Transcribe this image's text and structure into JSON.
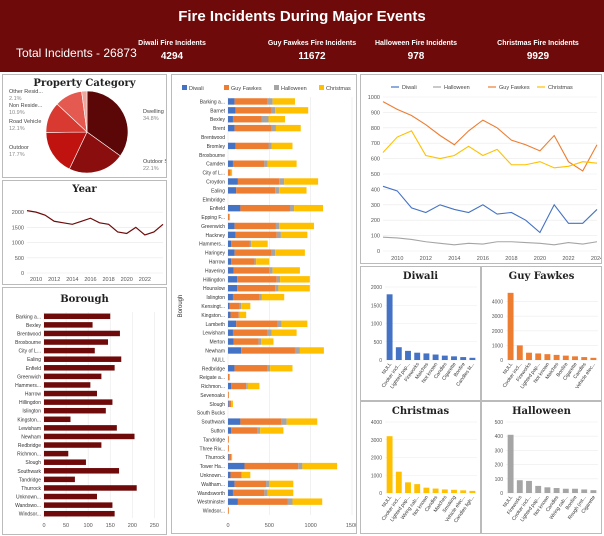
{
  "header": {
    "title": "Fire Incidents During Major Events",
    "total": "Total Incidents - 26873",
    "kpis": [
      {
        "label": "Diwali Fire Incidents",
        "value": "4294"
      },
      {
        "label": "Guy Fawkes Fire Incidents",
        "value": "11672"
      },
      {
        "label": "Halloween Fire Incidents",
        "value": "978"
      },
      {
        "label": "Christmas Fire Incidents",
        "value": "9929"
      }
    ]
  },
  "colors": {
    "diwali": "#4472c4",
    "guy": "#ed7d31",
    "halloween": "#a5a5a5",
    "christmas": "#ffc000",
    "maroon": "#6e0a0a"
  },
  "chart_data": [
    {
      "id": "property",
      "type": "pie",
      "title": "Property Category",
      "slices": [
        {
          "label": "Dwelling",
          "pct": "34.8%",
          "value": 34.8,
          "color": "#5c0707"
        },
        {
          "label": "Outdoor Str...",
          "pct": "22.1%",
          "value": 22.1,
          "color": "#8b0e0e"
        },
        {
          "label": "Outdoor",
          "pct": "17.7%",
          "value": 17.7,
          "color": "#c0120f"
        },
        {
          "label": "Road Vehicle",
          "pct": "12.1%",
          "value": 12.1,
          "color": "#d83a32"
        },
        {
          "label": "Non Reside...",
          "pct": "10.9%",
          "value": 10.9,
          "color": "#e45a50"
        },
        {
          "label": "Other Resid...",
          "pct": "2.1%",
          "value": 2.1,
          "color": "#f0a59d"
        }
      ]
    },
    {
      "id": "year",
      "type": "line",
      "title": "Year",
      "x": [
        2009,
        2010,
        2011,
        2012,
        2013,
        2014,
        2015,
        2016,
        2017,
        2018,
        2019,
        2020,
        2021,
        2022,
        2023,
        2024
      ],
      "values": [
        2050,
        2000,
        1900,
        1700,
        1650,
        1600,
        1700,
        1800,
        1650,
        1600,
        1350,
        1300,
        1500,
        1250,
        1350,
        1600
      ],
      "xticks": [
        "2010",
        "2012",
        "2014",
        "2016",
        "2018",
        "2020",
        "2022"
      ],
      "yticks": [
        "0",
        "500",
        "1000",
        "1500",
        "2000"
      ],
      "ylim": [
        0,
        2300
      ]
    },
    {
      "id": "borough_total",
      "type": "bar",
      "title": "Borough",
      "categories": [
        "Barking a...",
        "Bexley",
        "Brentwood",
        "Broxbourne",
        "City of L...",
        "Ealing",
        "Enfield",
        "Greenwich",
        "Hammers...",
        "Harrow",
        "Hillingdon",
        "Islington",
        "Kingston...",
        "Lewisham",
        "Newham",
        "Redbridge",
        "Richmon...",
        "Slough",
        "Southwark",
        "Tandridge",
        "Thurrock",
        "Unknown...",
        "Wandswo...",
        "Windsor..."
      ],
      "values": [
        150,
        110,
        172,
        145,
        115,
        175,
        160,
        130,
        105,
        120,
        155,
        140,
        60,
        165,
        205,
        130,
        55,
        95,
        170,
        70,
        210,
        120,
        155,
        160
      ],
      "xticks": [
        "0",
        "50",
        "100",
        "150",
        "200",
        "250"
      ],
      "xlim": [
        0,
        265
      ]
    },
    {
      "id": "borough_stacked",
      "type": "bar",
      "orientation": "horizontal-stacked",
      "ylabel": "Borough",
      "legend": [
        "Diwali",
        "Guy Fawkes",
        "Halloween",
        "Christmas"
      ],
      "categories": [
        "Barking a...",
        "Barnet",
        "Bexley",
        "Brent",
        "Brentwood",
        "Bromley",
        "Broxbourne",
        "Camden",
        "City of L...",
        "Croydon",
        "Ealing",
        "Elmbridge",
        "Enfield",
        "Epping F...",
        "Greenwich",
        "Hackney",
        "Hammers...",
        "Haringey",
        "Harrow",
        "Havering",
        "Hillingdon",
        "Hounslow",
        "Islington",
        "Kensingt...",
        "Kingston...",
        "Lambeth",
        "Lewisham",
        "Merton",
        "Newham",
        "NULL",
        "Redbridge",
        "Reigate a...",
        "Richmon...",
        "Sevenoaks",
        "Slough",
        "South Bucks",
        "Southwark",
        "Sutton",
        "Tandridge",
        "Three Riv...",
        "Thurrock",
        "Tower Ha...",
        "Unknown...",
        "Waltham...",
        "Wandsworth",
        "Westminster",
        "Windsor..."
      ],
      "series": [
        {
          "name": "Diwali",
          "values": [
            80,
            90,
            60,
            80,
            0,
            90,
            0,
            60,
            0,
            120,
            100,
            0,
            150,
            0,
            80,
            90,
            40,
            80,
            40,
            70,
            110,
            110,
            60,
            20,
            30,
            100,
            60,
            70,
            160,
            0,
            80,
            0,
            40,
            0,
            10,
            0,
            150,
            40,
            0,
            0,
            10,
            200,
            30,
            80,
            60,
            120,
            0
          ]
        },
        {
          "name": "Guy Fawkes",
          "values": [
            400,
            430,
            350,
            450,
            0,
            400,
            0,
            380,
            30,
            500,
            470,
            0,
            600,
            20,
            500,
            500,
            220,
            450,
            280,
            430,
            480,
            460,
            320,
            120,
            100,
            500,
            420,
            300,
            650,
            0,
            400,
            20,
            180,
            10,
            30,
            0,
            500,
            320,
            10,
            10,
            30,
            650,
            130,
            380,
            380,
            600,
            10
          ]
        },
        {
          "name": "Halloween",
          "values": [
            60,
            50,
            80,
            50,
            0,
            40,
            0,
            40,
            0,
            60,
            50,
            0,
            50,
            0,
            40,
            50,
            20,
            40,
            20,
            40,
            40,
            40,
            30,
            20,
            10,
            50,
            50,
            30,
            60,
            0,
            30,
            0,
            20,
            0,
            0,
            0,
            60,
            30,
            0,
            0,
            0,
            50,
            10,
            40,
            40,
            60,
            0
          ]
        },
        {
          "name": "Christmas",
          "values": [
            270,
            400,
            200,
            300,
            0,
            250,
            0,
            350,
            20,
            410,
            330,
            0,
            350,
            0,
            420,
            320,
            200,
            360,
            160,
            330,
            360,
            380,
            270,
            110,
            80,
            310,
            300,
            150,
            290,
            0,
            270,
            0,
            140,
            0,
            20,
            0,
            370,
            280,
            0,
            0,
            10,
            420,
            100,
            290,
            310,
            360,
            0
          ]
        }
      ],
      "xticks": [
        "0",
        "500",
        "1000",
        "1500"
      ],
      "xlim": [
        0,
        1500
      ]
    },
    {
      "id": "events_by_year",
      "type": "line",
      "legend": [
        "Diwali",
        "Halloween",
        "Guy Fawkes",
        "Christmas"
      ],
      "x": [
        2009,
        2010,
        2011,
        2012,
        2013,
        2014,
        2015,
        2016,
        2017,
        2018,
        2019,
        2020,
        2021,
        2022,
        2023,
        2024
      ],
      "series": [
        {
          "name": "Diwali",
          "values": [
            420,
            390,
            280,
            250,
            300,
            270,
            250,
            300,
            240,
            250,
            200,
            120,
            300,
            180,
            180,
            270
          ]
        },
        {
          "name": "Halloween",
          "values": [
            90,
            85,
            75,
            60,
            50,
            40,
            50,
            45,
            60,
            60,
            55,
            50,
            40,
            55,
            45,
            60
          ]
        },
        {
          "name": "Guy Fawkes",
          "values": [
            970,
            920,
            880,
            820,
            750,
            690,
            780,
            850,
            800,
            720,
            690,
            650,
            750,
            580,
            520,
            690
          ]
        },
        {
          "name": "Christmas",
          "values": [
            640,
            740,
            780,
            620,
            600,
            620,
            680,
            620,
            660,
            560,
            560,
            580,
            540,
            550,
            580,
            570
          ]
        }
      ],
      "xticks": [
        "2010",
        "2012",
        "2014",
        "2016",
        "2018",
        "2020",
        "2022",
        "2024"
      ],
      "yticks": [
        "0",
        "100",
        "200",
        "300",
        "400",
        "500",
        "600",
        "700",
        "800",
        "900",
        "1000"
      ],
      "ylim": [
        0,
        1000
      ]
    },
    {
      "id": "diwali",
      "type": "bar",
      "title": "Diwali",
      "color": "#4472c4",
      "categories": [
        "NULL",
        "Cooker incl...",
        "Lighted pap...",
        "Fireworks",
        "Matches",
        "Not known",
        "Candles",
        "Cigarette",
        "Bonfire",
        "Candles lit..."
      ],
      "values": [
        1800,
        350,
        250,
        200,
        180,
        150,
        120,
        100,
        80,
        60
      ],
      "yticks": [
        "0",
        "500",
        "1000",
        "1500",
        "2000"
      ],
      "ylim": [
        0,
        2000
      ]
    },
    {
      "id": "guy_fawkes",
      "type": "bar",
      "title": "Guy Fawkes",
      "color": "#ed7d31",
      "categories": [
        "NULL",
        "Cooker incl...",
        "Fireworks",
        "Lighted pap...",
        "Not known",
        "Matches",
        "Bonfire",
        "Cigarette",
        "Candles",
        "Vehicle elec..."
      ],
      "values": [
        4600,
        1000,
        500,
        450,
        400,
        350,
        300,
        250,
        200,
        150
      ],
      "yticks": [
        "0",
        "1000",
        "2000",
        "3000",
        "4000"
      ],
      "ylim": [
        0,
        5000
      ]
    },
    {
      "id": "christmas",
      "type": "bar",
      "title": "Christmas",
      "color": "#ffc000",
      "categories": [
        "NULL",
        "Cooker incl...",
        "Lighted pap...",
        "Wiring cab...",
        "Not known",
        "Candles",
        "Matches",
        "Smoking",
        "Vehicle elec...",
        "Candles ligh..."
      ],
      "values": [
        3200,
        1200,
        600,
        500,
        300,
        250,
        200,
        180,
        150,
        120
      ],
      "yticks": [
        "0",
        "1000",
        "2000",
        "3000",
        "4000"
      ],
      "ylim": [
        0,
        4000
      ]
    },
    {
      "id": "halloween",
      "type": "bar",
      "title": "Halloween",
      "color": "#a5a5a5",
      "categories": [
        "NULL",
        "Fireworks",
        "Cooker incl...",
        "Lighted pap...",
        "Not known",
        "Candles",
        "Wiring cab...",
        "Bonfire",
        "Rough (rot...",
        "Cigarette"
      ],
      "values": [
        410,
        90,
        85,
        50,
        40,
        35,
        30,
        30,
        25,
        20
      ],
      "yticks": [
        "0",
        "100",
        "200",
        "300",
        "400",
        "500"
      ],
      "ylim": [
        0,
        500
      ]
    }
  ]
}
